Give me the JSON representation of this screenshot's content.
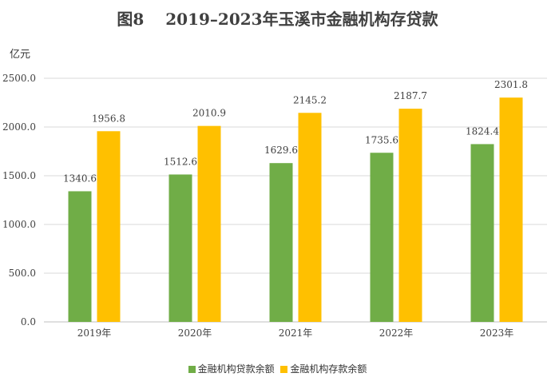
{
  "chart_data": {
    "type": "bar",
    "title": "图8　 2019–2023年玉溪市金融机构存贷款",
    "ylabel": "亿元",
    "xlabel": "",
    "categories": [
      "2019年",
      "2020年",
      "2021年",
      "2022年",
      "2023年"
    ],
    "series": [
      {
        "name": "金融机构贷款余额",
        "values": [
          1340.6,
          1512.6,
          1629.6,
          1735.6,
          1824.4
        ],
        "color": "#70ad47"
      },
      {
        "name": "金融机构存款余额",
        "values": [
          1956.8,
          2010.9,
          2145.2,
          2187.7,
          2301.8
        ],
        "color": "#ffc000"
      }
    ],
    "ylim": [
      0,
      2500
    ],
    "yticks": [
      "0.0",
      "500.0",
      "1000.0",
      "1500.0",
      "2000.0",
      "2500.0"
    ],
    "grid": true,
    "legend_position": "bottom"
  }
}
